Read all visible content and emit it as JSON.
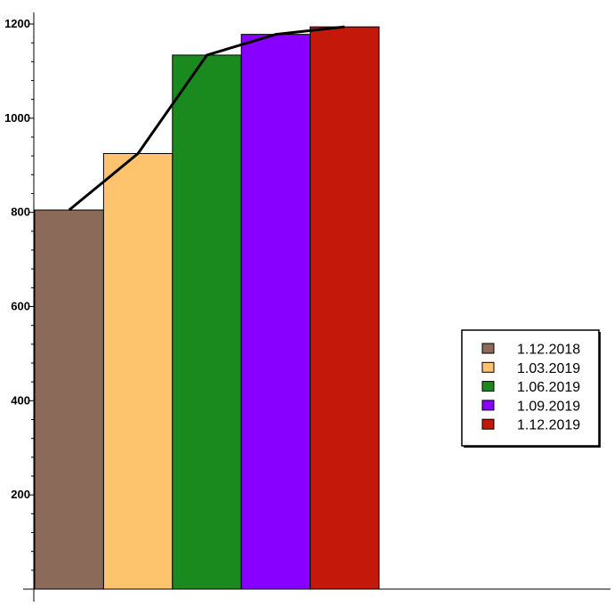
{
  "chart_data": {
    "type": "bar",
    "categories": [
      "1.12.2018",
      "1.03.2019",
      "1.06.2019",
      "1.09.2019",
      "1.12.2019"
    ],
    "values": [
      805,
      925,
      1134,
      1178,
      1194
    ],
    "colors": [
      "#8c6a5a",
      "#fdc36d",
      "#1a8a1f",
      "#8800ff",
      "#c4180a"
    ],
    "line": {
      "values": [
        805,
        925,
        1134,
        1178,
        1194
      ],
      "color": "#000000"
    },
    "ylim": [
      0,
      1220
    ],
    "yticks": [
      200,
      400,
      600,
      800,
      1000,
      1200
    ],
    "legend_position": "right",
    "grid": false
  }
}
